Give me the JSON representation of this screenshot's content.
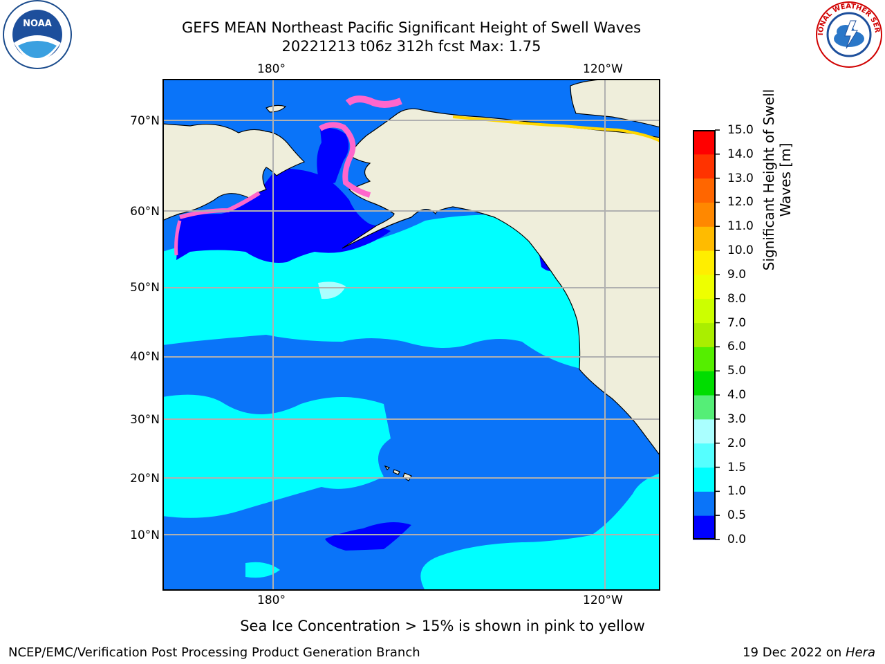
{
  "header": {
    "title_line1": "GEFS MEAN Northeast Pacific Significant Height of Swell Waves",
    "title_line2": "20221213 t06z 312h fcst   Max: 1.75"
  },
  "logos": {
    "left": "NOAA",
    "right": "NATIONAL WEATHER SERVICE"
  },
  "map": {
    "top_lon_labels": [
      "180°",
      "120°W"
    ],
    "bottom_lon_labels": [
      "180°",
      "120°W"
    ],
    "lat_labels": [
      "70°N",
      "60°N",
      "50°N",
      "40°N",
      "30°N",
      "20°N",
      "10°N"
    ],
    "colors": {
      "land": "#efeedb",
      "swell_0_0_5": "#0000ff",
      "swell_0_5_1": "#0a74f9",
      "swell_1_1_5": "#00ffff",
      "swell_1_5_2": "#55ffff",
      "swell_2_3": "#aaffff",
      "grid": "#b0b0b0",
      "sea_ice_pink": "#ff66cc",
      "sea_ice_magenta": "#e040e0",
      "sea_ice_yellow": "#ffd700"
    }
  },
  "colorbar": {
    "title_line1": "Significant Height of Swell",
    "title_line2": "Waves [m]",
    "ticks": [
      "0.0",
      "0.5",
      "1.0",
      "1.5",
      "2.0",
      "3.0",
      "4.0",
      "5.0",
      "6.0",
      "7.0",
      "8.0",
      "9.0",
      "10.0",
      "11.0",
      "12.0",
      "13.0",
      "14.0",
      "15.0"
    ],
    "colors": [
      "#0000ff",
      "#0a74f9",
      "#00ffff",
      "#55ffff",
      "#aaffff",
      "#55ee77",
      "#00dd00",
      "#55ee00",
      "#aaee00",
      "#ccff00",
      "#eeff00",
      "#ffee00",
      "#ffbb00",
      "#ff8800",
      "#ff6600",
      "#ff3300",
      "#ff0000"
    ]
  },
  "note": "Sea Ice Concentration > 15% is shown in pink to yellow",
  "footer": {
    "left": "NCEP/EMC/Verification Post Processing Product Generation Branch",
    "right_prefix": "19 Dec 2022 on ",
    "right_host": "Hera"
  }
}
